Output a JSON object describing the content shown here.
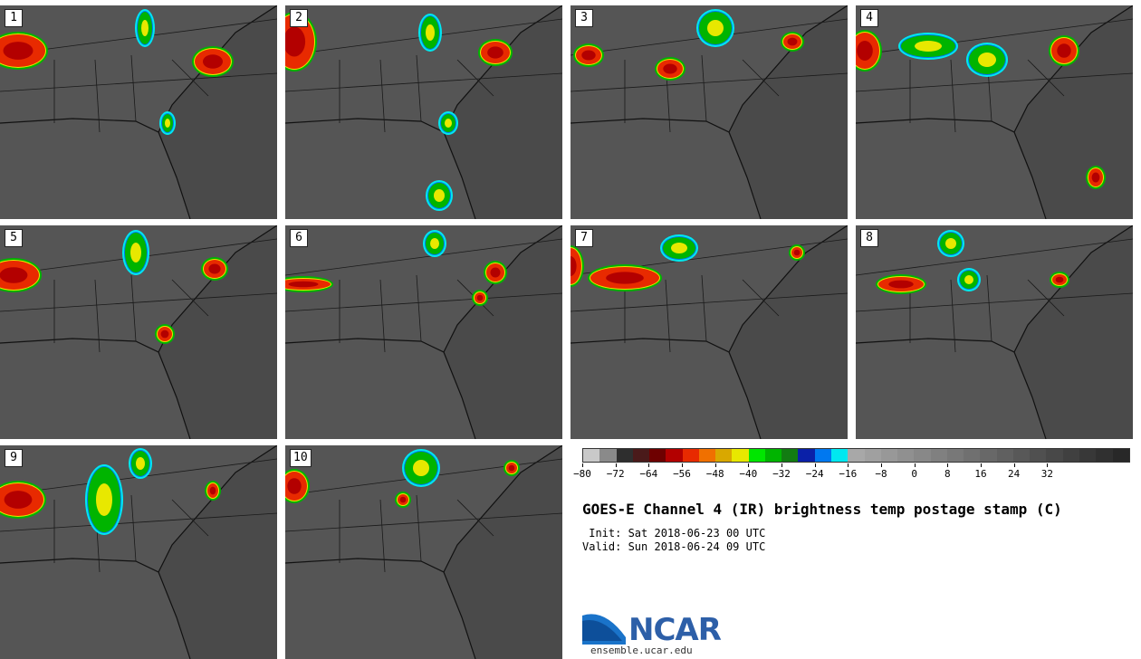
{
  "panels": [
    {
      "label": "1"
    },
    {
      "label": "2"
    },
    {
      "label": "3"
    },
    {
      "label": "4"
    },
    {
      "label": "5"
    },
    {
      "label": "6"
    },
    {
      "label": "7"
    },
    {
      "label": "8"
    },
    {
      "label": "9"
    },
    {
      "label": "10"
    }
  ],
  "colorbar": {
    "colors": [
      "#c9c9c9",
      "#8a8a8a",
      "#2e2e2e",
      "#4a1a1a",
      "#6e0000",
      "#b30000",
      "#e82a00",
      "#f07000",
      "#d9a800",
      "#e8e800",
      "#00e600",
      "#00b400",
      "#127c12",
      "#0a20a8",
      "#0078f0",
      "#00e8f0",
      "#a8a8a8",
      "#a0a0a0",
      "#989898",
      "#909090",
      "#888888",
      "#808080",
      "#787878",
      "#707070",
      "#686868",
      "#606060",
      "#585858",
      "#505050",
      "#484848",
      "#404040",
      "#383838",
      "#303030",
      "#282828"
    ],
    "ticks": [
      "−80",
      "−72",
      "−64",
      "−56",
      "−48",
      "−40",
      "−32",
      "−24",
      "−16",
      "−8",
      "0",
      "8",
      "16",
      "24",
      "32"
    ]
  },
  "title": "GOES-E Channel 4 (IR) brightness temp postage stamp (C)",
  "init": " Init: Sat 2018-06-23 00 UTC",
  "valid": "Valid: Sun 2018-06-24 09 UTC",
  "logo": {
    "text": "NCAR",
    "site": "ensemble.ucar.edu"
  }
}
